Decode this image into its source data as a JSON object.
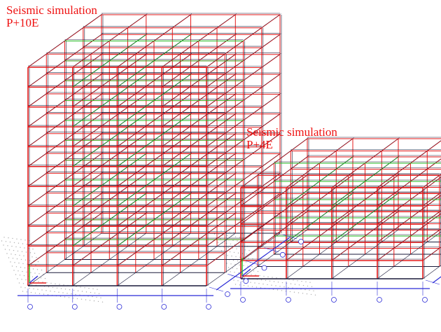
{
  "captions": {
    "building_a": {
      "line1": "Seismic simulation",
      "line2": "P+10E"
    },
    "building_b": {
      "line1": "Seismic simulation",
      "line2": "P+4E"
    }
  },
  "structures": {
    "building_a": {
      "storeys": 11,
      "bays_x": 4,
      "bays_z": 4
    },
    "building_b": {
      "storeys": 5,
      "bays_x": 4,
      "bays_z": 4
    }
  },
  "colors": {
    "beams_columns": "#e51b1b",
    "edges": "#1a1a3a",
    "secondary_beams": "#22bb22",
    "axes": "#2a2ad6",
    "ground_dots": "#b0b0b0",
    "caption": "#ee1111"
  }
}
